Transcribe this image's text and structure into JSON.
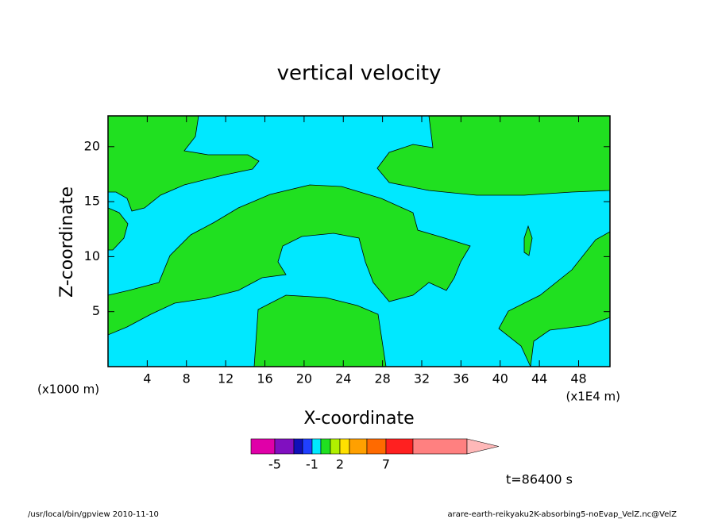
{
  "chart_data": {
    "type": "contour",
    "title": "vertical velocity",
    "x_label": "X-coordinate",
    "y_label": "Z-coordinate",
    "x_unit_left": "(x1000 m)",
    "x_unit_right": "(x1E4 m)",
    "xlim": [
      0,
      51.2
    ],
    "ylim": [
      0,
      22.8
    ],
    "xticks": [
      4,
      8,
      12,
      16,
      20,
      24,
      28,
      32,
      36,
      40,
      44,
      48
    ],
    "yticks": [
      5,
      10,
      15,
      20
    ],
    "colorbar": {
      "levels": [
        -10,
        -5,
        -3,
        -2,
        -1,
        0,
        1,
        2,
        3,
        5,
        7,
        10,
        20
      ],
      "colors": [
        "#e000a8",
        "#8010c0",
        "#1010b8",
        "#2040ff",
        "#00e8ff",
        "#20e020",
        "#b0f000",
        "#ffe000",
        "#ffa000",
        "#ff6a00",
        "#ff2020",
        "#ff8080",
        "#ffb8b8"
      ],
      "ticks": [
        -5,
        -1,
        2,
        7
      ]
    },
    "annotation": "t=86400 s",
    "footer_left": "/usr/local/bin/gpview  2010-11-10",
    "footer_right": "arare-earth-reikyaku2K-absorbing5-noEvap_VelZ.nc@VelZ"
  }
}
